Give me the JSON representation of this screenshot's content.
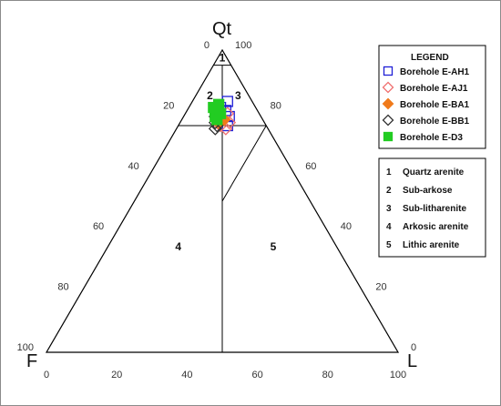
{
  "chart_data": {
    "type": "scatter",
    "subtype": "ternary",
    "vertices": {
      "top": "Qt",
      "left": "F",
      "right": "L"
    },
    "ticks": [
      0,
      20,
      40,
      60,
      80,
      100
    ],
    "fields": [
      {
        "id": "1",
        "name": "Quartz arenite"
      },
      {
        "id": "2",
        "name": "Sub-arkose"
      },
      {
        "id": "3",
        "name": "Sub-litharenite"
      },
      {
        "id": "4",
        "name": "Arkosic arenite"
      },
      {
        "id": "5",
        "name": "Lithic arenite"
      }
    ],
    "field_boundaries": {
      "quartz_arenite_min_qt": 95,
      "sub_min_qt": 75,
      "centre_split_f_to_l": 0.5
    },
    "legend_title": "LEGEND",
    "series": [
      {
        "name": "Borehole E-AH1",
        "marker": "square",
        "color": "#1f1fd6",
        "fill": "none",
        "points": [
          [
            83,
            7,
            10
          ],
          [
            80,
            9,
            11
          ],
          [
            78,
            9,
            13
          ],
          [
            75,
            11,
            14
          ],
          [
            81,
            10,
            9
          ]
        ]
      },
      {
        "name": "Borehole E-AJ1",
        "marker": "diamond",
        "color": "#f07070",
        "fill": "none",
        "points": [
          [
            77,
            11,
            12
          ],
          [
            74,
            12,
            14
          ],
          [
            79,
            9,
            12
          ],
          [
            75,
            13,
            12
          ],
          [
            76,
            10,
            14
          ],
          [
            78,
            12,
            10
          ]
        ]
      },
      {
        "name": "Borehole E-BA1",
        "marker": "diamond",
        "color": "#f07a1a",
        "fill": "#f07a1a",
        "points": [
          [
            76,
            13,
            11
          ],
          [
            78,
            12,
            10
          ],
          [
            77,
            11,
            12
          ]
        ]
      },
      {
        "name": "Borehole E-BB1",
        "marker": "diamond",
        "color": "#333333",
        "fill": "none",
        "points": [
          [
            76,
            14,
            10
          ],
          [
            74,
            15,
            11
          ],
          [
            78,
            13,
            9
          ],
          [
            75,
            14,
            11
          ]
        ]
      },
      {
        "name": "Borehole E-D3",
        "marker": "square",
        "color": "#22cc22",
        "fill": "#22cc22",
        "points": [
          [
            80,
            12,
            8
          ],
          [
            78,
            13,
            9
          ],
          [
            82,
            10,
            8
          ],
          [
            79,
            11,
            10
          ],
          [
            77,
            13,
            10
          ],
          [
            81,
            12,
            7
          ]
        ]
      }
    ]
  }
}
